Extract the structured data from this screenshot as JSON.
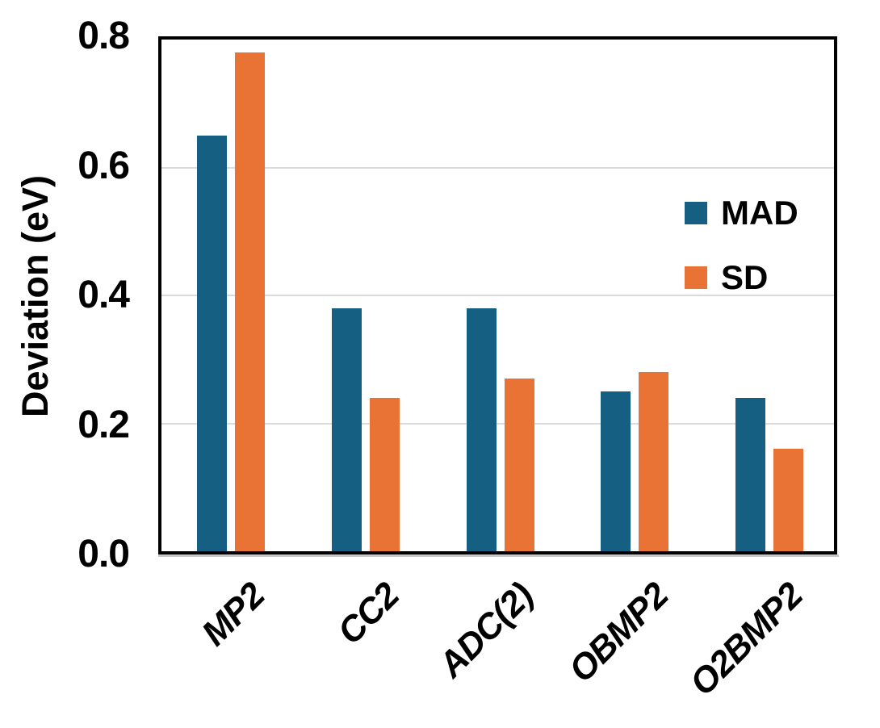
{
  "chart_data": {
    "type": "bar",
    "title": "",
    "categories": [
      "MP2",
      "CC2",
      "ADC(2)",
      "OBMP2",
      "O2BMP2"
    ],
    "series": [
      {
        "name": "MAD",
        "color": "#156082",
        "values": [
          0.65,
          0.38,
          0.38,
          0.25,
          0.24
        ]
      },
      {
        "name": "SD",
        "color": "#E97334",
        "values": [
          0.78,
          0.24,
          0.27,
          0.28,
          0.16
        ]
      }
    ],
    "xlabel": "",
    "ylabel": "Deviation (eV)",
    "ylim": [
      0,
      0.8
    ],
    "yticks": [
      0.0,
      0.2,
      0.4,
      0.6,
      0.8
    ],
    "ytick_labels": [
      "0.0",
      "0.2",
      "0.4",
      "0.6",
      "0.8"
    ],
    "grid": true,
    "legend_position": "upper-right-inside",
    "x_tick_rotation_deg": -45
  },
  "colors": {
    "background": "#FFFFFF",
    "axis_border": "#000000",
    "gridline": "#DADADA",
    "text": "#000000"
  }
}
